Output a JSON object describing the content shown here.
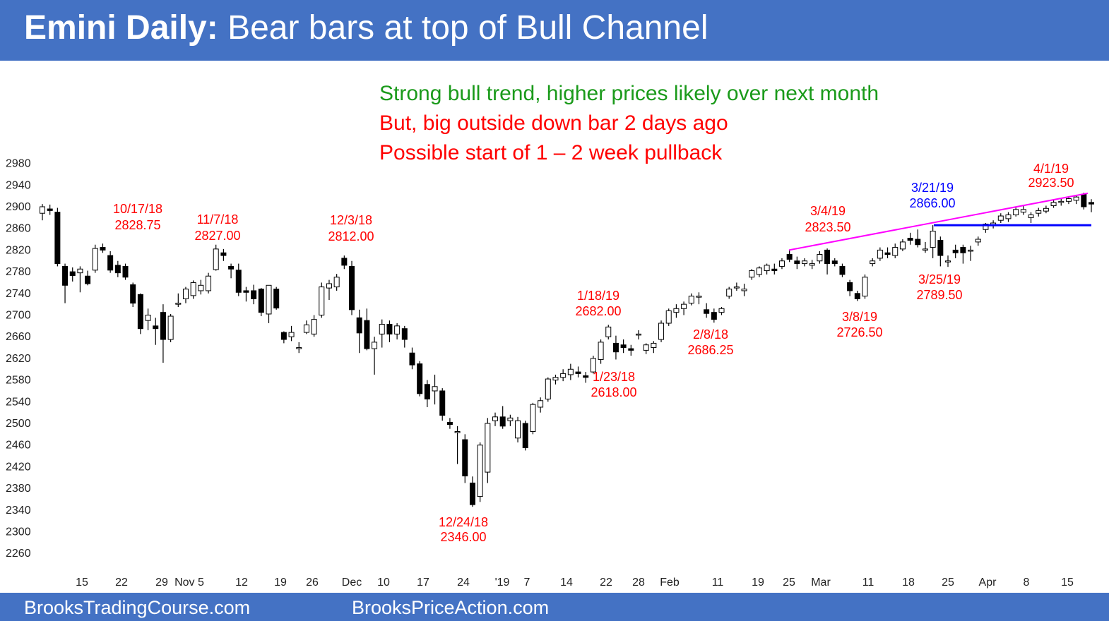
{
  "header": {
    "title_bold": "Emini Daily:",
    "title_rest": " Bear bars at top of Bull Channel"
  },
  "footer": {
    "left": "BrooksTradingCourse.com",
    "right": "BrooksPriceAction.com"
  },
  "notes": [
    {
      "text": "Strong bull trend, higher prices likely over next month",
      "color": "#1a9a1a"
    },
    {
      "text": "But, big outside down bar 2 days ago",
      "color": "#ff0000"
    },
    {
      "text": "Possible start of 1 – 2 week pullback",
      "color": "#ff0000"
    }
  ],
  "colors": {
    "accent_bar": "#4472c4",
    "annotation_red": "#ff0000",
    "annotation_blue": "#0000ff",
    "trendline_magenta": "#ff00ff",
    "bull_candle": "#ffffff",
    "bear_candle": "#000000"
  },
  "chart_data": {
    "type": "candlestick",
    "title": "Emini Daily",
    "ylim": [
      2240,
      2980
    ],
    "y_ticks": [
      2980,
      2940,
      2900,
      2860,
      2820,
      2780,
      2740,
      2700,
      2660,
      2620,
      2580,
      2540,
      2500,
      2460,
      2420,
      2380,
      2340,
      2300,
      2260
    ],
    "x_tick_labels": [
      "15",
      "22",
      "29",
      "Nov 5",
      "12",
      "19",
      "26",
      "Dec",
      "10",
      "17",
      "24",
      "'19",
      "7",
      "14",
      "22",
      "28",
      "Feb",
      "11",
      "19",
      "25",
      "Mar",
      "11",
      "18",
      "25",
      "Apr",
      "8",
      "15"
    ],
    "grid": false,
    "annotations": [
      {
        "date": "10/17/18",
        "price": "2828.75",
        "color": "#ff0000",
        "position": "above"
      },
      {
        "date": "11/7/18",
        "price": "2827.00",
        "color": "#ff0000",
        "position": "above"
      },
      {
        "date": "12/3/18",
        "price": "2812.00",
        "color": "#ff0000",
        "position": "above"
      },
      {
        "date": "12/24/18",
        "price": "2346.00",
        "color": "#ff0000",
        "position": "below"
      },
      {
        "date": "1/18/19",
        "price": "2682.00",
        "color": "#ff0000",
        "position": "above"
      },
      {
        "date": "1/23/18",
        "price": "2618.00",
        "color": "#ff0000",
        "position": "below"
      },
      {
        "date": "2/8/18",
        "price": "2686.25",
        "color": "#ff0000",
        "position": "below"
      },
      {
        "date": "3/4/19",
        "price": "2823.50",
        "color": "#ff0000",
        "position": "above"
      },
      {
        "date": "3/8/19",
        "price": "2726.50",
        "color": "#ff0000",
        "position": "below"
      },
      {
        "date": "3/21/19",
        "price": "2866.00",
        "color": "#0000ff",
        "position": "above"
      },
      {
        "date": "3/25/19",
        "price": "2789.50",
        "color": "#ff0000",
        "position": "below"
      },
      {
        "date": "4/1/19",
        "price": "2923.50",
        "color": "#ff0000",
        "position": "above"
      }
    ],
    "lines": [
      {
        "name": "bull-channel-trendline",
        "color": "#ff00ff",
        "from_price": 2820,
        "to_price": 2925
      },
      {
        "name": "breakout-level-2866",
        "color": "#0000ff",
        "price": 2866
      }
    ],
    "candles": [
      {
        "o": 2888,
        "h": 2905,
        "l": 2875,
        "c": 2900
      },
      {
        "o": 2896,
        "h": 2904,
        "l": 2885,
        "c": 2893
      },
      {
        "o": 2890,
        "h": 2898,
        "l": 2790,
        "c": 2795
      },
      {
        "o": 2790,
        "h": 2795,
        "l": 2722,
        "c": 2755
      },
      {
        "o": 2780,
        "h": 2788,
        "l": 2762,
        "c": 2773
      },
      {
        "o": 2778,
        "h": 2790,
        "l": 2742,
        "c": 2785
      },
      {
        "o": 2772,
        "h": 2782,
        "l": 2755,
        "c": 2758
      },
      {
        "o": 2783,
        "h": 2830,
        "l": 2778,
        "c": 2823
      },
      {
        "o": 2825,
        "h": 2832,
        "l": 2815,
        "c": 2820
      },
      {
        "o": 2810,
        "h": 2818,
        "l": 2778,
        "c": 2783
      },
      {
        "o": 2792,
        "h": 2800,
        "l": 2770,
        "c": 2778
      },
      {
        "o": 2790,
        "h": 2795,
        "l": 2765,
        "c": 2770
      },
      {
        "o": 2756,
        "h": 2760,
        "l": 2715,
        "c": 2722
      },
      {
        "o": 2738,
        "h": 2740,
        "l": 2665,
        "c": 2675
      },
      {
        "o": 2690,
        "h": 2712,
        "l": 2672,
        "c": 2700
      },
      {
        "o": 2680,
        "h": 2695,
        "l": 2645,
        "c": 2675
      },
      {
        "o": 2705,
        "h": 2720,
        "l": 2612,
        "c": 2655
      },
      {
        "o": 2655,
        "h": 2702,
        "l": 2650,
        "c": 2698
      },
      {
        "o": 2720,
        "h": 2740,
        "l": 2715,
        "c": 2722
      },
      {
        "o": 2730,
        "h": 2752,
        "l": 2722,
        "c": 2748
      },
      {
        "o": 2736,
        "h": 2764,
        "l": 2730,
        "c": 2760
      },
      {
        "o": 2745,
        "h": 2765,
        "l": 2738,
        "c": 2755
      },
      {
        "o": 2745,
        "h": 2778,
        "l": 2740,
        "c": 2772
      },
      {
        "o": 2784,
        "h": 2830,
        "l": 2782,
        "c": 2822
      },
      {
        "o": 2815,
        "h": 2822,
        "l": 2800,
        "c": 2810
      },
      {
        "o": 2790,
        "h": 2795,
        "l": 2768,
        "c": 2785
      },
      {
        "o": 2783,
        "h": 2795,
        "l": 2735,
        "c": 2742
      },
      {
        "o": 2745,
        "h": 2752,
        "l": 2725,
        "c": 2742
      },
      {
        "o": 2745,
        "h": 2756,
        "l": 2720,
        "c": 2730
      },
      {
        "o": 2748,
        "h": 2750,
        "l": 2698,
        "c": 2705
      },
      {
        "o": 2702,
        "h": 2755,
        "l": 2685,
        "c": 2755
      },
      {
        "o": 2748,
        "h": 2752,
        "l": 2710,
        "c": 2713
      },
      {
        "o": 2668,
        "h": 2670,
        "l": 2648,
        "c": 2655
      },
      {
        "o": 2660,
        "h": 2680,
        "l": 2652,
        "c": 2668
      },
      {
        "o": 2640,
        "h": 2650,
        "l": 2630,
        "c": 2640
      },
      {
        "o": 2668,
        "h": 2690,
        "l": 2665,
        "c": 2682
      },
      {
        "o": 2665,
        "h": 2700,
        "l": 2660,
        "c": 2692
      },
      {
        "o": 2700,
        "h": 2760,
        "l": 2695,
        "c": 2752
      },
      {
        "o": 2750,
        "h": 2765,
        "l": 2728,
        "c": 2758
      },
      {
        "o": 2752,
        "h": 2776,
        "l": 2745,
        "c": 2770
      },
      {
        "o": 2805,
        "h": 2810,
        "l": 2785,
        "c": 2792
      },
      {
        "o": 2790,
        "h": 2800,
        "l": 2700,
        "c": 2710
      },
      {
        "o": 2695,
        "h": 2710,
        "l": 2630,
        "c": 2667
      },
      {
        "o": 2690,
        "h": 2712,
        "l": 2635,
        "c": 2638
      },
      {
        "o": 2638,
        "h": 2660,
        "l": 2590,
        "c": 2650
      },
      {
        "o": 2665,
        "h": 2692,
        "l": 2640,
        "c": 2683
      },
      {
        "o": 2683,
        "h": 2690,
        "l": 2650,
        "c": 2665
      },
      {
        "o": 2665,
        "h": 2685,
        "l": 2655,
        "c": 2680
      },
      {
        "o": 2675,
        "h": 2680,
        "l": 2640,
        "c": 2655
      },
      {
        "o": 2630,
        "h": 2640,
        "l": 2600,
        "c": 2608
      },
      {
        "o": 2610,
        "h": 2615,
        "l": 2550,
        "c": 2555
      },
      {
        "o": 2572,
        "h": 2580,
        "l": 2530,
        "c": 2545
      },
      {
        "o": 2560,
        "h": 2590,
        "l": 2535,
        "c": 2568
      },
      {
        "o": 2560,
        "h": 2565,
        "l": 2505,
        "c": 2515
      },
      {
        "o": 2502,
        "h": 2510,
        "l": 2490,
        "c": 2498
      },
      {
        "o": 2485,
        "h": 2495,
        "l": 2425,
        "c": 2485
      },
      {
        "o": 2470,
        "h": 2480,
        "l": 2390,
        "c": 2403
      },
      {
        "o": 2390,
        "h": 2402,
        "l": 2346,
        "c": 2350
      },
      {
        "o": 2365,
        "h": 2465,
        "l": 2355,
        "c": 2460
      },
      {
        "o": 2410,
        "h": 2510,
        "l": 2390,
        "c": 2500
      },
      {
        "o": 2505,
        "h": 2520,
        "l": 2495,
        "c": 2512
      },
      {
        "o": 2512,
        "h": 2532,
        "l": 2490,
        "c": 2495
      },
      {
        "o": 2505,
        "h": 2516,
        "l": 2495,
        "c": 2510
      },
      {
        "o": 2473,
        "h": 2512,
        "l": 2465,
        "c": 2505
      },
      {
        "o": 2500,
        "h": 2505,
        "l": 2450,
        "c": 2455
      },
      {
        "o": 2485,
        "h": 2538,
        "l": 2480,
        "c": 2535
      },
      {
        "o": 2530,
        "h": 2548,
        "l": 2520,
        "c": 2542
      },
      {
        "o": 2545,
        "h": 2585,
        "l": 2540,
        "c": 2582
      },
      {
        "o": 2580,
        "h": 2590,
        "l": 2572,
        "c": 2585
      },
      {
        "o": 2585,
        "h": 2600,
        "l": 2578,
        "c": 2592
      },
      {
        "o": 2590,
        "h": 2610,
        "l": 2580,
        "c": 2600
      },
      {
        "o": 2595,
        "h": 2605,
        "l": 2585,
        "c": 2592
      },
      {
        "o": 2588,
        "h": 2595,
        "l": 2575,
        "c": 2585
      },
      {
        "o": 2595,
        "h": 2625,
        "l": 2592,
        "c": 2620
      },
      {
        "o": 2618,
        "h": 2655,
        "l": 2610,
        "c": 2650
      },
      {
        "o": 2660,
        "h": 2682,
        "l": 2655,
        "c": 2678
      },
      {
        "o": 2648,
        "h": 2662,
        "l": 2618,
        "c": 2632
      },
      {
        "o": 2645,
        "h": 2655,
        "l": 2630,
        "c": 2640
      },
      {
        "o": 2638,
        "h": 2645,
        "l": 2625,
        "c": 2635
      },
      {
        "o": 2665,
        "h": 2672,
        "l": 2655,
        "c": 2665
      },
      {
        "o": 2635,
        "h": 2648,
        "l": 2628,
        "c": 2645
      },
      {
        "o": 2640,
        "h": 2652,
        "l": 2630,
        "c": 2648
      },
      {
        "o": 2655,
        "h": 2690,
        "l": 2650,
        "c": 2685
      },
      {
        "o": 2685,
        "h": 2712,
        "l": 2680,
        "c": 2708
      },
      {
        "o": 2705,
        "h": 2720,
        "l": 2695,
        "c": 2712
      },
      {
        "o": 2712,
        "h": 2725,
        "l": 2700,
        "c": 2720
      },
      {
        "o": 2722,
        "h": 2740,
        "l": 2718,
        "c": 2735
      },
      {
        "o": 2735,
        "h": 2742,
        "l": 2720,
        "c": 2735
      },
      {
        "o": 2710,
        "h": 2722,
        "l": 2695,
        "c": 2703
      },
      {
        "o": 2705,
        "h": 2712,
        "l": 2686,
        "c": 2692
      },
      {
        "o": 2705,
        "h": 2715,
        "l": 2700,
        "c": 2712
      },
      {
        "o": 2735,
        "h": 2752,
        "l": 2730,
        "c": 2748
      },
      {
        "o": 2752,
        "h": 2760,
        "l": 2745,
        "c": 2752
      },
      {
        "o": 2745,
        "h": 2758,
        "l": 2735,
        "c": 2748
      },
      {
        "o": 2770,
        "h": 2785,
        "l": 2765,
        "c": 2782
      },
      {
        "o": 2775,
        "h": 2790,
        "l": 2770,
        "c": 2787
      },
      {
        "o": 2782,
        "h": 2795,
        "l": 2775,
        "c": 2792
      },
      {
        "o": 2785,
        "h": 2795,
        "l": 2775,
        "c": 2782
      },
      {
        "o": 2790,
        "h": 2805,
        "l": 2785,
        "c": 2800
      },
      {
        "o": 2812,
        "h": 2820,
        "l": 2798,
        "c": 2803
      },
      {
        "o": 2800,
        "h": 2808,
        "l": 2785,
        "c": 2795
      },
      {
        "o": 2795,
        "h": 2805,
        "l": 2790,
        "c": 2800
      },
      {
        "o": 2792,
        "h": 2802,
        "l": 2785,
        "c": 2795
      },
      {
        "o": 2800,
        "h": 2818,
        "l": 2795,
        "c": 2812
      },
      {
        "o": 2820,
        "h": 2823,
        "l": 2775,
        "c": 2795
      },
      {
        "o": 2800,
        "h": 2805,
        "l": 2790,
        "c": 2795
      },
      {
        "o": 2790,
        "h": 2795,
        "l": 2770,
        "c": 2775
      },
      {
        "o": 2760,
        "h": 2765,
        "l": 2735,
        "c": 2745
      },
      {
        "o": 2740,
        "h": 2745,
        "l": 2726,
        "c": 2730
      },
      {
        "o": 2735,
        "h": 2775,
        "l": 2730,
        "c": 2770
      },
      {
        "o": 2795,
        "h": 2805,
        "l": 2790,
        "c": 2800
      },
      {
        "o": 2805,
        "h": 2825,
        "l": 2800,
        "c": 2820
      },
      {
        "o": 2815,
        "h": 2825,
        "l": 2805,
        "c": 2812
      },
      {
        "o": 2810,
        "h": 2832,
        "l": 2805,
        "c": 2825
      },
      {
        "o": 2822,
        "h": 2840,
        "l": 2818,
        "c": 2835
      },
      {
        "o": 2842,
        "h": 2852,
        "l": 2830,
        "c": 2838
      },
      {
        "o": 2840,
        "h": 2858,
        "l": 2825,
        "c": 2830
      },
      {
        "o": 2820,
        "h": 2835,
        "l": 2815,
        "c": 2822
      },
      {
        "o": 2825,
        "h": 2866,
        "l": 2805,
        "c": 2855
      },
      {
        "o": 2838,
        "h": 2845,
        "l": 2790,
        "c": 2810
      },
      {
        "o": 2800,
        "h": 2810,
        "l": 2789,
        "c": 2800
      },
      {
        "o": 2820,
        "h": 2830,
        "l": 2805,
        "c": 2815
      },
      {
        "o": 2825,
        "h": 2830,
        "l": 2795,
        "c": 2815
      },
      {
        "o": 2818,
        "h": 2828,
        "l": 2800,
        "c": 2820
      },
      {
        "o": 2835,
        "h": 2845,
        "l": 2828,
        "c": 2840
      },
      {
        "o": 2858,
        "h": 2870,
        "l": 2852,
        "c": 2868
      },
      {
        "o": 2865,
        "h": 2875,
        "l": 2860,
        "c": 2870
      },
      {
        "o": 2875,
        "h": 2888,
        "l": 2870,
        "c": 2883
      },
      {
        "o": 2878,
        "h": 2890,
        "l": 2872,
        "c": 2885
      },
      {
        "o": 2885,
        "h": 2900,
        "l": 2882,
        "c": 2895
      },
      {
        "o": 2890,
        "h": 2902,
        "l": 2885,
        "c": 2895
      },
      {
        "o": 2880,
        "h": 2890,
        "l": 2870,
        "c": 2885
      },
      {
        "o": 2888,
        "h": 2898,
        "l": 2882,
        "c": 2893
      },
      {
        "o": 2892,
        "h": 2902,
        "l": 2888,
        "c": 2897
      },
      {
        "o": 2902,
        "h": 2912,
        "l": 2898,
        "c": 2908
      },
      {
        "o": 2908,
        "h": 2915,
        "l": 2902,
        "c": 2910
      },
      {
        "o": 2910,
        "h": 2918,
        "l": 2905,
        "c": 2915
      },
      {
        "o": 2912,
        "h": 2922,
        "l": 2905,
        "c": 2918
      },
      {
        "o": 2923,
        "h": 2926,
        "l": 2895,
        "c": 2900
      },
      {
        "o": 2908,
        "h": 2914,
        "l": 2890,
        "c": 2905
      }
    ]
  }
}
